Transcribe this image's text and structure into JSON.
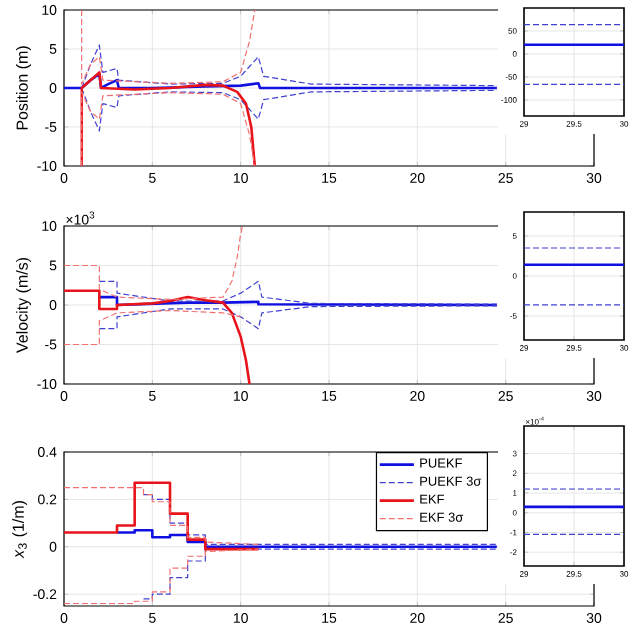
{
  "chart_data": [
    {
      "type": "line",
      "ylabel": "Position (m)",
      "xlim": [
        0,
        30
      ],
      "ylim": [
        -10,
        10
      ],
      "xticks": [
        0,
        5,
        10,
        15,
        20,
        25,
        30
      ],
      "yticks": [
        -10,
        -5,
        0,
        5,
        10
      ],
      "grid": true,
      "series": [
        {
          "color": "#1010e0",
          "line_style": "solid",
          "x": [
            0,
            1,
            1.5,
            2,
            2.1,
            2.5,
            3,
            3.1,
            5,
            8,
            10,
            11,
            11.1,
            13,
            24.5
          ],
          "values": [
            0,
            0,
            1,
            1.8,
            0,
            0.5,
            1,
            0,
            0,
            0.2,
            0.3,
            0.6,
            0,
            0,
            0
          ]
        },
        {
          "color": "#4040d0",
          "line_style": "dashed",
          "x": [
            1,
            1.5,
            2,
            2.2,
            3,
            3.1,
            6,
            9,
            10,
            11,
            11.3,
            14,
            24.5
          ],
          "values": [
            0,
            3,
            5.5,
            2,
            2.5,
            1,
            0.5,
            0.6,
            1.5,
            4,
            1.5,
            0.5,
            0.3
          ]
        },
        {
          "color": "#4040d0",
          "line_style": "dashed",
          "x": [
            1,
            1.5,
            2,
            2.2,
            3,
            3.1,
            6,
            9,
            10,
            11,
            11.3,
            14,
            24.5
          ],
          "values": [
            0,
            -3,
            -5.5,
            -2,
            -2.5,
            -1,
            -0.5,
            -0.6,
            -1.5,
            -4,
            -1.5,
            -0.5,
            -0.3
          ]
        },
        {
          "color": "#e8141c",
          "line_style": "solid",
          "x": [
            1,
            1,
            1.5,
            2,
            2.1,
            4,
            6,
            8,
            9,
            9.8,
            10.3,
            10.6,
            10.8
          ],
          "values": [
            -10,
            0,
            1,
            2,
            0,
            -0.2,
            0,
            0.4,
            0.3,
            -0.5,
            -2,
            -5,
            -10
          ]
        },
        {
          "color": "#f07070",
          "line_style": "dashed",
          "x": [
            1,
            1,
            1.5,
            2,
            2.2,
            6,
            9,
            10,
            10.5,
            10.8
          ],
          "values": [
            10,
            0.5,
            3,
            4,
            1,
            0.6,
            0.8,
            2,
            6,
            10
          ]
        },
        {
          "color": "#f07070",
          "line_style": "dashed",
          "x": [
            1,
            1,
            1.5,
            2,
            2.2,
            6,
            9,
            10,
            10.5,
            10.8
          ],
          "values": [
            -10,
            -0.5,
            -3,
            -4,
            -1,
            -0.6,
            -0.8,
            -2,
            -6,
            -10
          ]
        }
      ]
    },
    {
      "type": "line",
      "ylabel": "Velocity (m/s)",
      "annotations": [
        "×10$^{3}$"
      ],
      "xlim": [
        0,
        30
      ],
      "ylim": [
        -10,
        10
      ],
      "xticks": [
        0,
        5,
        10,
        15,
        20,
        25,
        30
      ],
      "yticks": [
        -10,
        -5,
        0,
        5,
        10
      ],
      "grid": true,
      "series": [
        {
          "color": "#1010e0",
          "line_style": "solid",
          "x": [
            2,
            3,
            3,
            7,
            9,
            11,
            11,
            24.5
          ],
          "values": [
            1,
            1,
            0,
            0.3,
            0.3,
            0.4,
            0.1,
            0
          ]
        },
        {
          "color": "#4040d0",
          "line_style": "dashed",
          "x": [
            2,
            3,
            3,
            6,
            9,
            10,
            11,
            11.2,
            14,
            24.5
          ],
          "values": [
            3,
            3,
            1.5,
            0.5,
            0.5,
            1.5,
            3,
            1,
            0.2,
            0.1
          ]
        },
        {
          "color": "#4040d0",
          "line_style": "dashed",
          "x": [
            2,
            3,
            3,
            6,
            9,
            10,
            11,
            11.2,
            14,
            24.5
          ],
          "values": [
            -3,
            -3,
            -1.5,
            -0.5,
            -0.5,
            -1.5,
            -3,
            -1,
            -0.2,
            -0.1
          ]
        },
        {
          "color": "#e8141c",
          "line_style": "solid",
          "x": [
            0,
            2,
            2,
            3,
            3,
            5,
            6,
            7,
            8,
            9,
            9.5,
            10,
            10.3,
            10.5
          ],
          "values": [
            1.8,
            1.8,
            -0.5,
            -0.5,
            0,
            0.2,
            0.5,
            1,
            0.6,
            0.3,
            -1,
            -4,
            -7,
            -10
          ]
        },
        {
          "color": "#f07070",
          "line_style": "dashed",
          "x": [
            0,
            2,
            2,
            3,
            6,
            9,
            9.5,
            9.8,
            10,
            10.1
          ],
          "values": [
            5,
            5,
            2,
            1,
            0.7,
            1,
            3,
            6,
            9,
            10
          ]
        },
        {
          "color": "#f07070",
          "line_style": "dashed",
          "x": [
            0,
            2,
            2,
            3,
            6,
            9,
            10
          ],
          "values": [
            -5,
            -5,
            -2,
            -1,
            -0.7,
            -1,
            -1.5
          ]
        }
      ]
    },
    {
      "type": "line",
      "ylabel": "*x*$_{3}$ (1/m)",
      "xlim": [
        0,
        30
      ],
      "ylim": [
        -0.25,
        0.4
      ],
      "xticks": [
        0,
        5,
        10,
        15,
        20,
        25,
        30
      ],
      "yticks": [
        -0.2,
        0,
        0.2,
        0.4
      ],
      "grid": true,
      "legend": "top right",
      "series": [
        {
          "name": "PUEKF",
          "color": "#1010e0",
          "line_style": "solid",
          "x": [
            3,
            4,
            4,
            5,
            5,
            6,
            6,
            7,
            7,
            8,
            8,
            24.5
          ],
          "values": [
            0.06,
            0.06,
            0.07,
            0.07,
            0.04,
            0.04,
            0.05,
            0.05,
            0.02,
            0.02,
            0,
            0
          ]
        },
        {
          "name": "PUEKF 3σ",
          "color": "#4040d0",
          "line_style": "dashed",
          "x": [
            4.5,
            5,
            5,
            6,
            6,
            7,
            7,
            8,
            8,
            11,
            24.5
          ],
          "values": [
            0.22,
            0.22,
            0.2,
            0.2,
            0.1,
            0.1,
            0.05,
            0.05,
            0.01,
            0.01,
            0.01
          ]
        },
        {
          "color": "#4040d0",
          "line_style": "dashed",
          "x": [
            4.5,
            5,
            5,
            6,
            6,
            7,
            7,
            8,
            8,
            11,
            24.5
          ],
          "values": [
            -0.22,
            -0.22,
            -0.2,
            -0.2,
            -0.13,
            -0.13,
            -0.06,
            -0.06,
            -0.01,
            -0.01,
            -0.01
          ]
        },
        {
          "name": "EKF",
          "color": "#e8141c",
          "line_style": "solid",
          "x": [
            0,
            3,
            3,
            4,
            4,
            6,
            6,
            7,
            7,
            8,
            8,
            11
          ],
          "values": [
            0.06,
            0.06,
            0.09,
            0.09,
            0.27,
            0.27,
            0.14,
            0.14,
            0.03,
            0.03,
            -0.01,
            -0.01
          ]
        },
        {
          "name": "EKF 3σ",
          "color": "#f07070",
          "line_style": "dashed",
          "x": [
            0,
            4.5,
            4.5,
            5,
            5,
            6,
            6,
            7,
            7,
            8,
            8,
            11
          ],
          "values": [
            0.25,
            0.25,
            0.22,
            0.22,
            0.19,
            0.19,
            0.09,
            0.09,
            0.04,
            0.04,
            0.02,
            0.01
          ]
        },
        {
          "color": "#f07070",
          "line_style": "dashed",
          "x": [
            0,
            4,
            4,
            5,
            5,
            6,
            6,
            7,
            7,
            8,
            8,
            11
          ],
          "values": [
            -0.24,
            -0.24,
            -0.23,
            -0.23,
            -0.19,
            -0.19,
            -0.09,
            -0.09,
            -0.04,
            -0.04,
            -0.02,
            -0.01
          ]
        }
      ]
    },
    {
      "type": "line",
      "xlim": [
        29,
        30
      ],
      "ylim": [
        -135,
        100
      ],
      "xticks": [
        29,
        29.5,
        30
      ],
      "yticks": [
        -100,
        -50,
        0,
        50
      ],
      "grid": true,
      "series": [
        {
          "color": "#1010e0",
          "line_style": "solid",
          "x": [
            29,
            30
          ],
          "values": [
            20,
            20
          ]
        },
        {
          "color": "#4040d0",
          "line_style": "dashed",
          "x": [
            29,
            30
          ],
          "values": [
            64,
            64
          ]
        },
        {
          "color": "#4040d0",
          "line_style": "dashed",
          "x": [
            29,
            30
          ],
          "values": [
            -66,
            -66
          ]
        }
      ]
    },
    {
      "type": "line",
      "xlim": [
        29,
        30
      ],
      "ylim": [
        -8,
        8
      ],
      "xticks": [
        29,
        29.5,
        30
      ],
      "yticks": [
        -5,
        0,
        5
      ],
      "grid": true,
      "series": [
        {
          "color": "#1010e0",
          "line_style": "solid",
          "x": [
            29,
            30
          ],
          "values": [
            1.4,
            1.4
          ]
        },
        {
          "color": "#4040d0",
          "line_style": "dashed",
          "x": [
            29,
            30
          ],
          "values": [
            3.5,
            3.5
          ]
        },
        {
          "color": "#4040d0",
          "line_style": "dashed",
          "x": [
            29,
            30
          ],
          "values": [
            -3.6,
            -3.6
          ]
        }
      ]
    },
    {
      "type": "line",
      "annotations": [
        "×10$^{-4}$"
      ],
      "xlim": [
        29,
        30
      ],
      "ylim": [
        -2.7,
        4.4
      ],
      "xticks": [
        29,
        29.5,
        30
      ],
      "yticks": [
        -2,
        -1,
        0,
        1,
        2,
        3
      ],
      "grid": true,
      "series": [
        {
          "color": "#1010e0",
          "line_style": "solid",
          "x": [
            29,
            30
          ],
          "values": [
            0.3,
            0.3
          ]
        },
        {
          "color": "#4040d0",
          "line_style": "dashed",
          "x": [
            29,
            30
          ],
          "values": [
            1.2,
            1.2
          ]
        },
        {
          "color": "#4040d0",
          "line_style": "dashed",
          "x": [
            29,
            30
          ],
          "values": [
            -1.1,
            -1.1
          ]
        }
      ]
    }
  ]
}
